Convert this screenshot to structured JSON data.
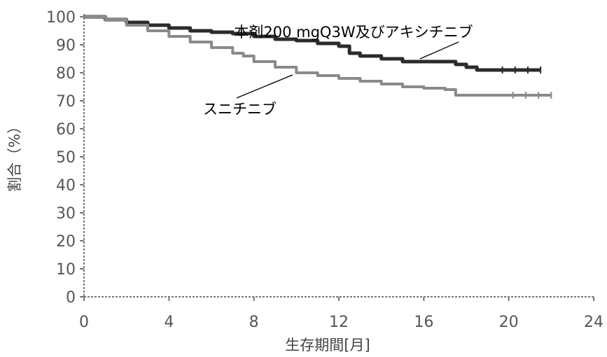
{
  "chart_data": {
    "type": "line",
    "xlabel": "生存期間[月]",
    "ylabel": "割合（%）",
    "xlim": [
      0,
      24
    ],
    "ylim": [
      0,
      100
    ],
    "x_ticks": [
      0,
      4,
      8,
      12,
      16,
      20,
      24
    ],
    "y_ticks": [
      0,
      10,
      20,
      30,
      40,
      50,
      60,
      70,
      80,
      90,
      100
    ],
    "grid": false,
    "series": [
      {
        "name": "本剤200 mgQ3W及びアキシチニブ",
        "color": "#2b2b2b",
        "x": [
          0,
          1,
          2,
          3,
          4,
          5,
          6,
          7,
          8,
          9,
          10,
          11,
          12,
          12.5,
          13,
          14,
          15,
          16,
          16.5,
          17,
          17.5,
          18,
          18.5,
          19,
          20,
          21,
          21.5
        ],
        "y": [
          100,
          99,
          98,
          97,
          96,
          95,
          94.5,
          94,
          93,
          92,
          91.5,
          90.5,
          89.5,
          87,
          86,
          85,
          84,
          84,
          84,
          84,
          83,
          82,
          81,
          81,
          81,
          81,
          81
        ]
      },
      {
        "name": "スニチニブ",
        "color": "#8a8a8a",
        "x": [
          0,
          1,
          2,
          3,
          4,
          5,
          6,
          7,
          7.5,
          8,
          9,
          10,
          11,
          12,
          13,
          14,
          15,
          16,
          17,
          17.5,
          18,
          19,
          20,
          21,
          22
        ],
        "y": [
          100,
          99,
          97,
          95,
          93,
          91,
          89,
          87,
          86,
          84,
          82,
          80,
          79,
          78,
          77,
          76,
          75,
          74.5,
          74,
          72,
          72,
          72,
          72,
          72,
          72
        ]
      }
    ],
    "annotations": [
      {
        "series": 0,
        "text": "本剤200 mgQ3W及びアキシチニブ"
      },
      {
        "series": 1,
        "text": "スニチニブ"
      }
    ]
  }
}
